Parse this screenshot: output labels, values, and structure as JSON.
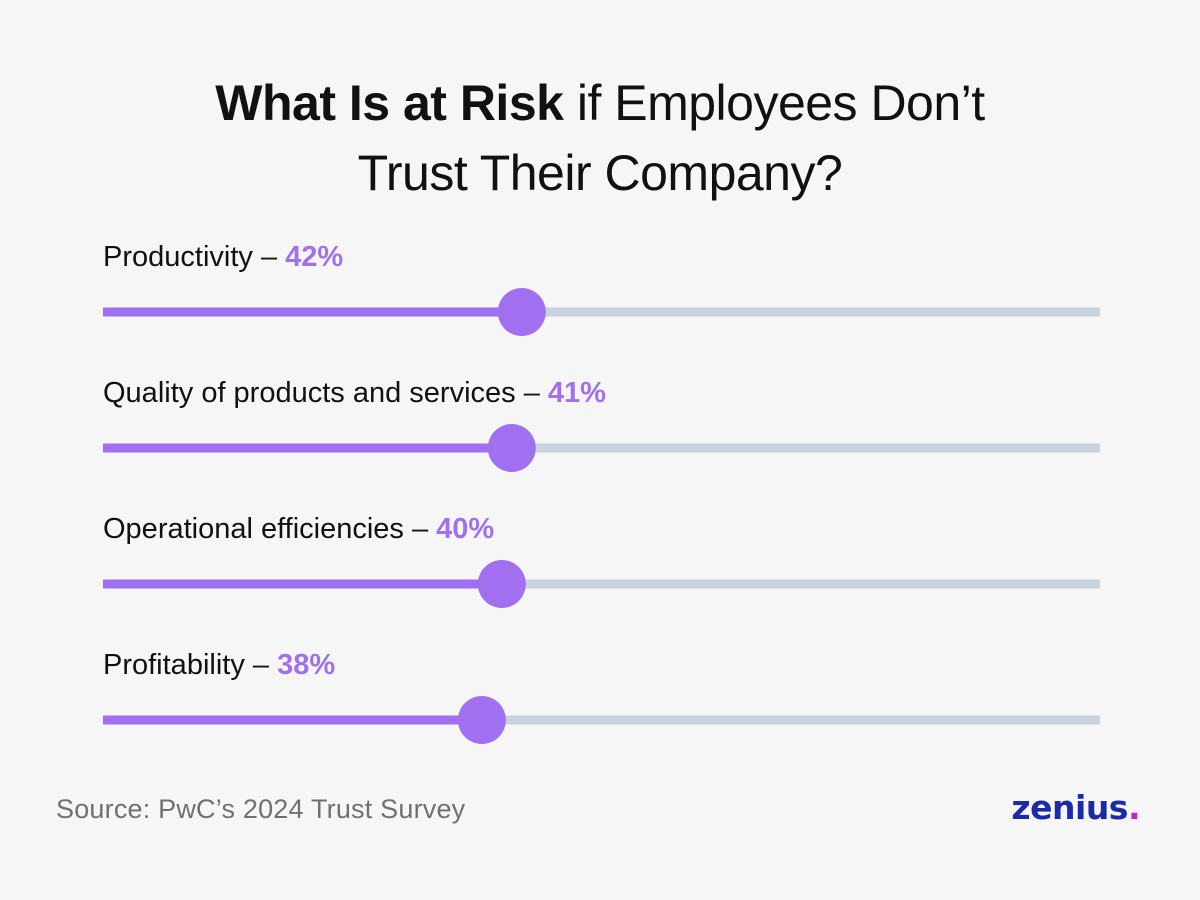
{
  "title": {
    "bold_part": "What Is at Risk",
    "line1_rest": " if Employees Don’t",
    "line2": "Trust Their Company?"
  },
  "chart_data": {
    "type": "bar",
    "categories": [
      "Productivity",
      "Quality of products and services",
      "Operational efficiencies",
      "Profitability"
    ],
    "values": [
      42,
      41,
      40,
      38
    ],
    "value_labels": [
      "42%",
      "41%",
      "40%",
      "38%"
    ],
    "separator": " – ",
    "ylim": [
      0,
      100
    ],
    "colors": {
      "fill": "#a170f0",
      "knob": "#a170f0",
      "track": "#c9d3df",
      "value_text": "#a170f0",
      "label_text": "#111111"
    }
  },
  "source": "Source: PwC’s 2024 Trust Survey",
  "logo": {
    "text": "zenius",
    "dot": "."
  }
}
